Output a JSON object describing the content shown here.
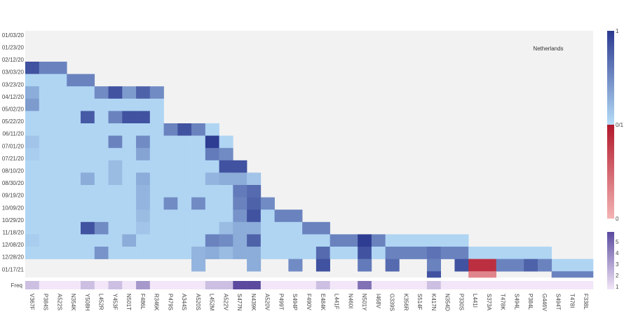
{
  "chart_data": {
    "type": "heatmap",
    "annotation": "Netherlands",
    "freq_label": "Freq",
    "dates": [
      "01/03/20",
      "01/23/20",
      "02/12/20",
      "03/03/20",
      "03/23/20",
      "04/12/20",
      "05/02/20",
      "05/22/20",
      "06/11/20",
      "07/01/20",
      "07/21/20",
      "08/10/20",
      "08/30/20",
      "09/19/20",
      "10/09/20",
      "10/29/20",
      "11/18/20",
      "12/08/20",
      "12/28/20",
      "01/17/21"
    ],
    "mutations": [
      "V367F",
      "P384S",
      "A522S",
      "N354K",
      "Y508H",
      "L452R",
      "Y453F",
      "N501T",
      "F486L",
      "R346K",
      "P479S",
      "A344S",
      "A520S",
      "L452M",
      "A522V",
      "S477N",
      "N439K",
      "A520V",
      "P499T",
      "S494P",
      "F490V",
      "E484K",
      "L441F",
      "N460I",
      "N501Y",
      "I468V",
      "G339S",
      "K356R",
      "S514F",
      "K417N",
      "N354D",
      "P330S",
      "L441I",
      "S373A",
      "T478K",
      "S494L",
      "P384L",
      "G446V",
      "S494T",
      "T478I",
      "F338L"
    ],
    "freq": [
      2,
      1,
      1,
      1,
      2,
      1,
      2,
      1,
      3,
      1,
      1,
      1,
      1,
      2,
      2,
      5,
      5,
      1,
      1,
      1,
      1,
      2,
      1,
      1,
      4,
      1,
      1,
      1,
      1,
      2,
      1,
      1,
      1,
      1,
      1,
      1,
      1,
      1,
      1,
      1,
      1
    ],
    "freq_colorbar": {
      "ticks": [
        1,
        2,
        3,
        4,
        5
      ],
      "low_color": "#f2e6f8",
      "high_color": "#5b4a9e"
    },
    "value_colorbar": {
      "ticks": [
        "1",
        "0/1",
        "0"
      ],
      "positive_low": "#b6ddf8",
      "positive_high": "#2b3990",
      "negative_low": "#f4b4b4",
      "negative_high": "#b2182b"
    },
    "bg_color": "#f2f2f2",
    "rows_note": "cells: [mutation_index, first_row, last_row, base_value] + overrides [mutation_index, row, value]",
    "spans": [
      [
        0,
        4,
        19,
        0.05
      ],
      [
        1,
        4,
        19,
        0.05
      ],
      [
        2,
        4,
        19,
        0.05
      ],
      [
        3,
        5,
        19,
        0.05
      ],
      [
        4,
        5,
        19,
        0.05
      ],
      [
        5,
        6,
        19,
        0.05
      ],
      [
        6,
        6,
        19,
        0.05
      ],
      [
        7,
        6,
        19,
        0.05
      ],
      [
        8,
        6,
        19,
        0.05
      ],
      [
        9,
        6,
        19,
        0.05
      ],
      [
        10,
        9,
        19,
        0.05
      ],
      [
        11,
        9,
        19,
        0.05
      ],
      [
        12,
        9,
        19,
        0.05
      ],
      [
        13,
        9,
        19,
        0.05
      ],
      [
        14,
        10,
        19,
        0.05
      ],
      [
        15,
        12,
        19,
        0.15
      ],
      [
        16,
        13,
        19,
        0.15
      ],
      [
        17,
        15,
        19,
        0.05
      ],
      [
        18,
        16,
        19,
        0.05
      ],
      [
        19,
        16,
        19,
        0.05
      ],
      [
        20,
        17,
        19,
        0.05
      ],
      [
        21,
        17,
        19,
        0.05
      ],
      [
        22,
        18,
        19,
        0.05
      ],
      [
        23,
        18,
        19,
        0.05
      ],
      [
        24,
        18,
        19,
        0.2
      ],
      [
        25,
        18,
        19,
        0.05
      ],
      [
        26,
        18,
        19,
        0.05
      ],
      [
        27,
        18,
        19,
        0.05
      ],
      [
        28,
        18,
        19,
        0.05
      ],
      [
        29,
        18,
        19,
        0.05
      ],
      [
        30,
        18,
        19,
        0.05
      ],
      [
        31,
        18,
        19,
        0.05
      ],
      [
        32,
        19,
        19,
        0.05
      ],
      [
        33,
        19,
        19,
        0.05
      ],
      [
        34,
        19,
        19,
        0.05
      ],
      [
        35,
        19,
        19,
        0.05
      ],
      [
        36,
        19,
        19,
        0.05
      ],
      [
        37,
        19,
        19,
        0.05
      ],
      [
        38,
        20,
        20,
        0.05
      ],
      [
        39,
        20,
        20,
        0.05
      ],
      [
        40,
        20,
        20,
        0.05
      ]
    ],
    "overrides": [
      [
        0,
        4,
        0.85
      ],
      [
        0,
        6,
        0.3
      ],
      [
        0,
        7,
        0.4
      ],
      [
        0,
        10,
        0.15
      ],
      [
        0,
        11,
        0.1
      ],
      [
        0,
        18,
        0.1
      ],
      [
        1,
        4,
        0.55
      ],
      [
        2,
        4,
        0.55
      ],
      [
        3,
        5,
        0.55
      ],
      [
        4,
        5,
        0.55
      ],
      [
        4,
        8,
        0.8
      ],
      [
        4,
        13,
        0.3
      ],
      [
        4,
        17,
        0.85
      ],
      [
        5,
        6,
        0.5
      ],
      [
        5,
        17,
        0.5
      ],
      [
        5,
        19,
        0.45
      ],
      [
        6,
        6,
        0.85
      ],
      [
        6,
        8,
        0.55
      ],
      [
        6,
        10,
        0.55
      ],
      [
        6,
        12,
        0.2
      ],
      [
        6,
        13,
        0.2
      ],
      [
        7,
        6,
        0.4
      ],
      [
        7,
        8,
        0.85
      ],
      [
        7,
        18,
        0.3
      ],
      [
        8,
        6,
        0.75
      ],
      [
        8,
        8,
        0.85
      ],
      [
        8,
        10,
        0.5
      ],
      [
        8,
        11,
        0.35
      ],
      [
        8,
        13,
        0.3
      ],
      [
        8,
        14,
        0.25
      ],
      [
        8,
        15,
        0.25
      ],
      [
        8,
        16,
        0.2
      ],
      [
        8,
        17,
        0.15
      ],
      [
        9,
        6,
        0.5
      ],
      [
        10,
        9,
        0.55
      ],
      [
        10,
        15,
        0.5
      ],
      [
        11,
        9,
        0.85
      ],
      [
        12,
        9,
        0.55
      ],
      [
        12,
        15,
        0.5
      ],
      [
        12,
        19,
        0.25
      ],
      [
        12,
        20,
        0.25
      ],
      [
        13,
        10,
        0.98
      ],
      [
        13,
        11,
        0.6
      ],
      [
        13,
        13,
        0.25
      ],
      [
        13,
        18,
        0.55
      ],
      [
        13,
        19,
        0.3
      ],
      [
        14,
        11,
        0.5
      ],
      [
        14,
        12,
        0.85
      ],
      [
        14,
        13,
        0.3
      ],
      [
        14,
        17,
        0.2
      ],
      [
        14,
        18,
        0.5
      ],
      [
        14,
        19,
        0.2
      ],
      [
        15,
        12,
        0.85
      ],
      [
        15,
        13,
        0.3
      ],
      [
        15,
        14,
        0.6
      ],
      [
        15,
        15,
        0.55
      ],
      [
        15,
        16,
        0.45
      ],
      [
        15,
        17,
        0.3
      ],
      [
        15,
        18,
        0.3
      ],
      [
        15,
        19,
        0.3
      ],
      [
        16,
        14,
        0.7
      ],
      [
        16,
        15,
        0.75
      ],
      [
        16,
        16,
        0.85
      ],
      [
        16,
        17,
        0.3
      ],
      [
        16,
        18,
        0.75
      ],
      [
        16,
        19,
        0.3
      ],
      [
        16,
        20,
        0.3
      ],
      [
        17,
        15,
        0.5
      ],
      [
        18,
        16,
        0.55
      ],
      [
        19,
        16,
        0.55
      ],
      [
        19,
        20,
        0.5
      ],
      [
        20,
        17,
        0.55
      ],
      [
        21,
        17,
        0.55
      ],
      [
        21,
        19,
        0.7
      ],
      [
        21,
        20,
        0.85
      ],
      [
        22,
        18,
        0.55
      ],
      [
        23,
        18,
        0.55
      ],
      [
        24,
        18,
        0.98
      ],
      [
        24,
        19,
        0.85
      ],
      [
        24,
        20,
        0.6
      ],
      [
        25,
        18,
        0.55
      ],
      [
        26,
        19,
        0.55
      ],
      [
        26,
        20,
        0.7
      ],
      [
        27,
        19,
        0.55
      ],
      [
        28,
        19,
        0.55
      ],
      [
        29,
        19,
        0.65
      ],
      [
        29,
        20,
        0.55
      ],
      [
        29,
        21,
        0.85
      ],
      [
        30,
        19,
        0.55
      ],
      [
        31,
        19,
        0.55
      ],
      [
        31,
        20,
        0.85
      ],
      [
        32,
        20,
        -0.85
      ],
      [
        32,
        21,
        -0.3
      ],
      [
        33,
        20,
        -0.85
      ],
      [
        33,
        21,
        -0.3
      ],
      [
        34,
        20,
        0.55
      ],
      [
        35,
        20,
        0.55
      ],
      [
        36,
        20,
        0.75
      ],
      [
        37,
        20,
        0.55
      ],
      [
        38,
        21,
        0.55
      ],
      [
        39,
        21,
        0.55
      ],
      [
        40,
        21,
        0.55
      ]
    ]
  }
}
